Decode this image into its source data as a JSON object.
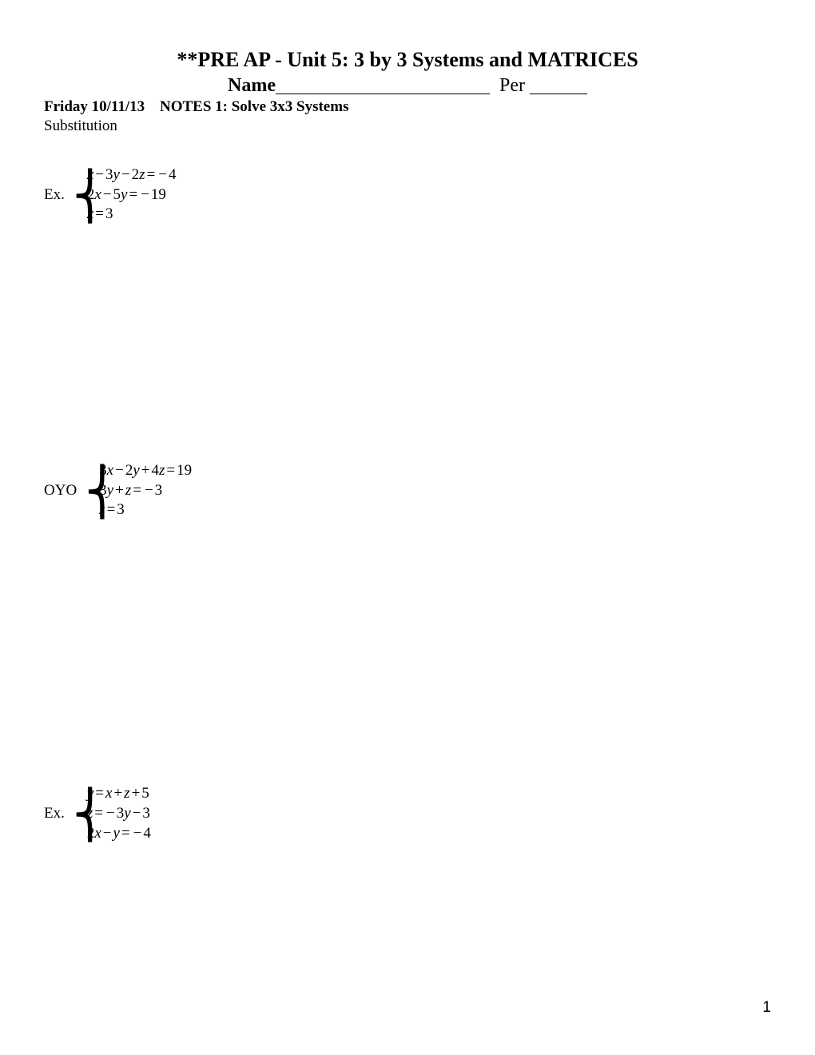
{
  "title": "**PRE AP - Unit 5: 3 by 3 Systems and MATRICES",
  "name_label": "Name",
  "per_label": "Per",
  "date": "Friday 10/11/13",
  "notes_title": "NOTES 1: Solve 3x3 Systems",
  "method": "Substitution",
  "problems": [
    {
      "label": "Ex.",
      "eq1": "x − 3y − 2z = −4",
      "eq2": "2x − 5y = −19",
      "eq3": "x = 3"
    },
    {
      "label": "OYO",
      "eq1": "3x − 2y + 4z = 19",
      "eq2": "3y + z = −3",
      "eq3": "z = 3"
    },
    {
      "label": "Ex.",
      "eq1": "y = x + z + 5",
      "eq2": "z = −3y − 3",
      "eq3": "2x − y = −4"
    }
  ],
  "page_number": "1",
  "colors": {
    "background": "#ffffff",
    "text": "#000000"
  },
  "fonts": {
    "body": "Times New Roman",
    "page_number": "Arial"
  }
}
